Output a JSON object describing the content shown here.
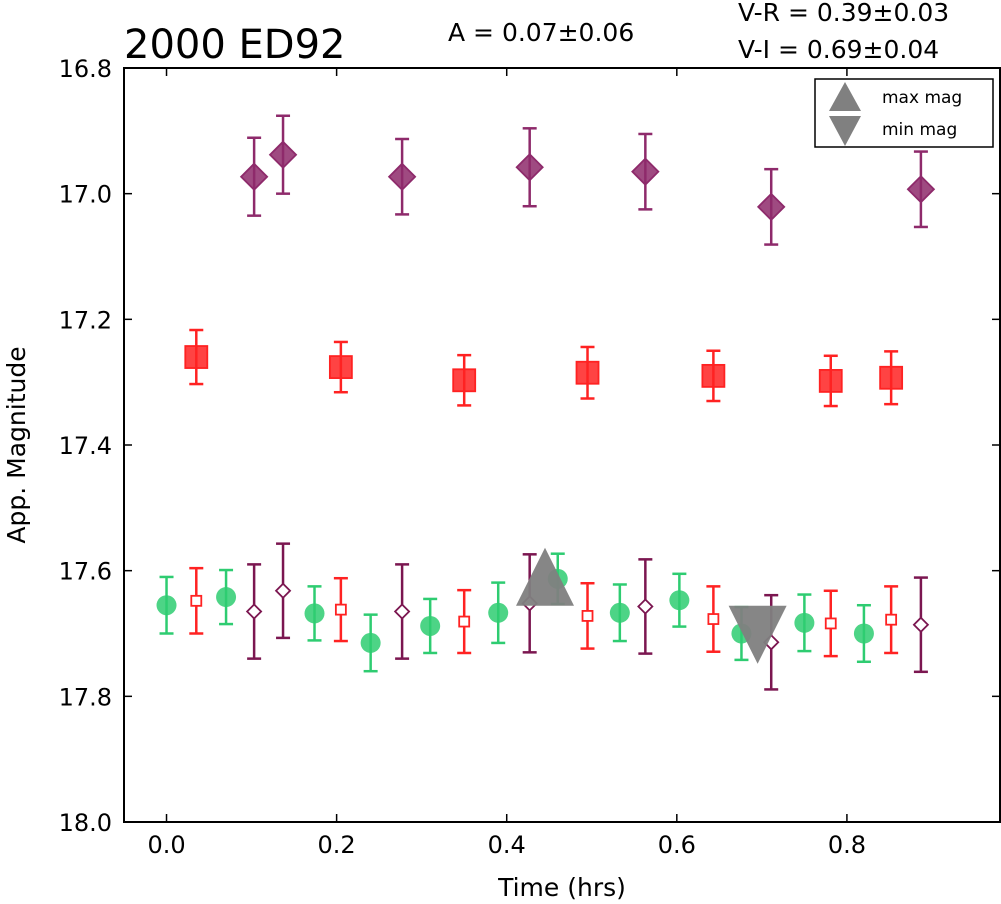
{
  "chart_data": {
    "type": "scatter",
    "title": "2000 ED92",
    "annotations": {
      "amplitude": "A  = 0.07±0.06",
      "vr": "V-R = 0.39±0.03",
      "vi": "V-I  = 0.69±0.04"
    },
    "xlabel": "Time (hrs)",
    "ylabel": "App. Magnitude",
    "xlim": [
      -0.05,
      0.98
    ],
    "ylim": [
      18.0,
      16.8
    ],
    "y_inverted": true,
    "x_ticks": [
      "0.0",
      "0.2",
      "0.4",
      "0.6",
      "0.8"
    ],
    "y_ticks": [
      "16.8",
      "17.0",
      "17.2",
      "17.4",
      "17.6",
      "17.8",
      "18.0"
    ],
    "legend": {
      "position": "top-right",
      "entries": [
        {
          "label": "max mag",
          "marker": "triangle-up",
          "color": "#808080"
        },
        {
          "label": "min mag",
          "marker": "triangle-down",
          "color": "#808080"
        }
      ]
    },
    "series": [
      {
        "filter": "V",
        "marker": "circle",
        "fill": true,
        "color": "#2ecc71",
        "points": [
          {
            "x": 0.0,
            "y": 17.655,
            "err": 0.045
          },
          {
            "x": 0.07,
            "y": 17.642,
            "err": 0.043
          },
          {
            "x": 0.174,
            "y": 17.668,
            "err": 0.043
          },
          {
            "x": 0.24,
            "y": 17.715,
            "err": 0.045
          },
          {
            "x": 0.31,
            "y": 17.688,
            "err": 0.043
          },
          {
            "x": 0.39,
            "y": 17.667,
            "err": 0.048
          },
          {
            "x": 0.46,
            "y": 17.613,
            "err": 0.04
          },
          {
            "x": 0.533,
            "y": 17.667,
            "err": 0.045
          },
          {
            "x": 0.603,
            "y": 17.647,
            "err": 0.042
          },
          {
            "x": 0.676,
            "y": 17.7,
            "err": 0.042
          },
          {
            "x": 0.75,
            "y": 17.683,
            "err": 0.045
          },
          {
            "x": 0.82,
            "y": 17.7,
            "err": 0.045
          }
        ]
      },
      {
        "filter": "V",
        "marker": "square",
        "fill": false,
        "color": "#ff2222",
        "points": [
          {
            "x": 0.035,
            "y": 17.648,
            "err": 0.052
          },
          {
            "x": 0.205,
            "y": 17.662,
            "err": 0.05
          },
          {
            "x": 0.35,
            "y": 17.681,
            "err": 0.05
          },
          {
            "x": 0.495,
            "y": 17.672,
            "err": 0.052
          },
          {
            "x": 0.643,
            "y": 17.677,
            "err": 0.052
          },
          {
            "x": 0.781,
            "y": 17.684,
            "err": 0.052
          },
          {
            "x": 0.852,
            "y": 17.678,
            "err": 0.053
          }
        ]
      },
      {
        "filter": "V",
        "marker": "diamond",
        "fill": false,
        "color": "#7b1650",
        "points": [
          {
            "x": 0.103,
            "y": 17.665,
            "err": 0.075
          },
          {
            "x": 0.137,
            "y": 17.632,
            "err": 0.075
          },
          {
            "x": 0.277,
            "y": 17.665,
            "err": 0.075
          },
          {
            "x": 0.427,
            "y": 17.652,
            "err": 0.078
          },
          {
            "x": 0.563,
            "y": 17.657,
            "err": 0.075
          },
          {
            "x": 0.711,
            "y": 17.714,
            "err": 0.075
          },
          {
            "x": 0.887,
            "y": 17.686,
            "err": 0.075
          }
        ]
      },
      {
        "filter": "R",
        "marker": "square",
        "fill": true,
        "color": "#ff2222",
        "points": [
          {
            "x": 0.035,
            "y": 17.26,
            "err": 0.043
          },
          {
            "x": 0.205,
            "y": 17.276,
            "err": 0.04
          },
          {
            "x": 0.35,
            "y": 17.297,
            "err": 0.04
          },
          {
            "x": 0.495,
            "y": 17.285,
            "err": 0.041
          },
          {
            "x": 0.643,
            "y": 17.29,
            "err": 0.04
          },
          {
            "x": 0.781,
            "y": 17.298,
            "err": 0.04
          },
          {
            "x": 0.852,
            "y": 17.293,
            "err": 0.042
          }
        ]
      },
      {
        "filter": "I",
        "marker": "diamond",
        "fill": true,
        "color": "#8e2a6b",
        "points": [
          {
            "x": 0.103,
            "y": 16.973,
            "err": 0.062
          },
          {
            "x": 0.137,
            "y": 16.938,
            "err": 0.062
          },
          {
            "x": 0.277,
            "y": 16.973,
            "err": 0.06
          },
          {
            "x": 0.427,
            "y": 16.958,
            "err": 0.062
          },
          {
            "x": 0.563,
            "y": 16.965,
            "err": 0.06
          },
          {
            "x": 0.711,
            "y": 17.021,
            "err": 0.06
          },
          {
            "x": 0.887,
            "y": 16.993,
            "err": 0.06
          }
        ]
      },
      {
        "name": "max mag",
        "marker": "triangle-up",
        "fill": true,
        "color": "#808080",
        "points": [
          {
            "x": 0.445,
            "y": 17.64
          }
        ]
      },
      {
        "name": "min mag",
        "marker": "triangle-down",
        "fill": true,
        "color": "#808080",
        "points": [
          {
            "x": 0.695,
            "y": 17.71
          }
        ]
      }
    ]
  }
}
